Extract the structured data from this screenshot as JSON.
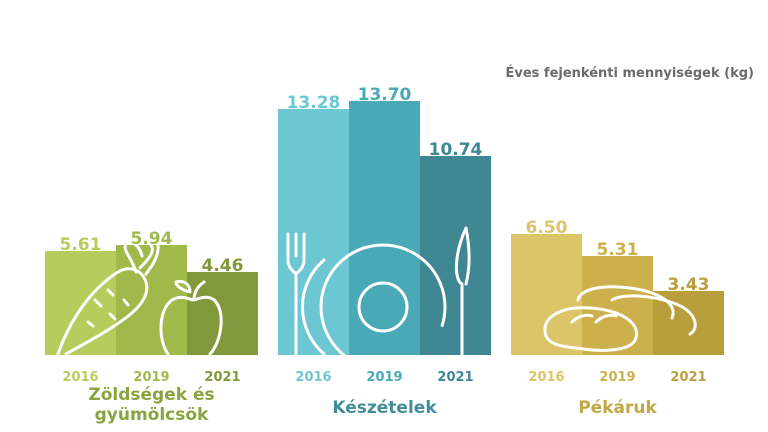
{
  "chart_data": {
    "type": "bar",
    "title": "Éves fejenkénti mennyiségek (kg)",
    "xlabel": "",
    "ylabel": "",
    "ylim": [
      0,
      14
    ],
    "grid": false,
    "groups": [
      {
        "name": "Zöldségek és gyümölcsök",
        "name_lines": [
          "Zöldségek és",
          "gyümölcsök"
        ],
        "icon": "carrot-apple-icon",
        "categories": [
          "2016",
          "2019",
          "2021"
        ],
        "values": [
          5.61,
          5.94,
          4.46
        ],
        "labels": [
          "5.61",
          "5.94",
          "4.46"
        ],
        "colors": [
          "#b6cc5c",
          "#9fb94a",
          "#80993b"
        ],
        "label_color": "#8aa33f"
      },
      {
        "name": "Készételek",
        "name_lines": [
          "Készételek"
        ],
        "icon": "plate-fork-knife-icon",
        "categories": [
          "2016",
          "2019",
          "2021"
        ],
        "values": [
          13.28,
          13.7,
          10.74
        ],
        "labels": [
          "13.28",
          "13.70",
          "10.74"
        ],
        "colors": [
          "#6dc7d3",
          "#4aa9b7",
          "#3f8792"
        ],
        "label_color": "#3f8e9a"
      },
      {
        "name": "Pékáruk",
        "name_lines": [
          "Pékáruk"
        ],
        "icon": "bread-icon",
        "categories": [
          "2016",
          "2019",
          "2021"
        ],
        "values": [
          6.5,
          5.31,
          3.43
        ],
        "labels": [
          "6.50",
          "5.31",
          "3.43"
        ],
        "colors": [
          "#dcc468",
          "#cbb04b",
          "#b99f3c"
        ],
        "label_color": "#c2a843"
      }
    ]
  }
}
